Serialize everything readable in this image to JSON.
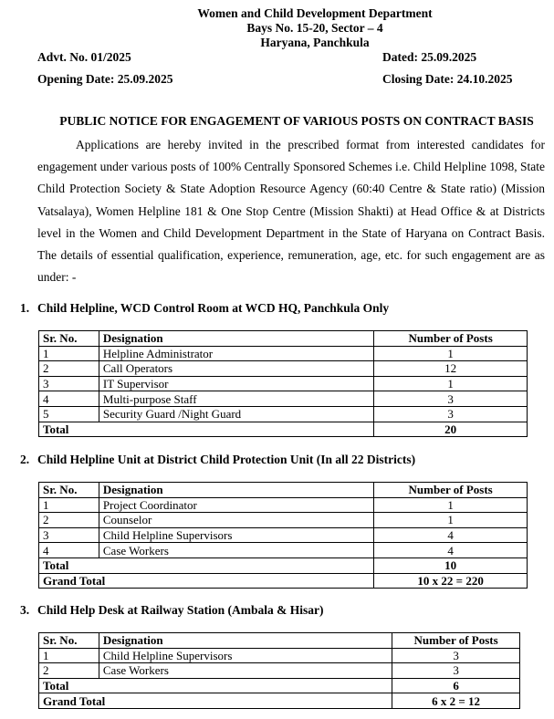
{
  "header": {
    "dept": "Women and Child Development Department",
    "address1": "Bays No. 15-20, Sector – 4",
    "address2": "Haryana, Panchkula"
  },
  "advt": "Advt. No. 01/2025",
  "dated": "Dated: 25.09.2025",
  "opening": "Opening Date: 25.09.2025",
  "closing": "Closing Date: 24.10.2025",
  "title": "PUBLIC NOTICE FOR ENGAGEMENT OF VARIOUS POSTS ON CONTRACT BASIS",
  "paragraph": "Applications are hereby invited in the prescribed format from interested candidates for engagement under various posts of 100% Centrally Sponsored Schemes i.e. Child Helpline 1098, State Child Protection Society & State Adoption Resource Agency (60:40 Centre & State ratio) (Mission Vatsalaya), Women Helpline 181 & One Stop Centre (Mission Shakti) at Head Office & at Districts level in the Women and Child Development Department in the State of Haryana on Contract Basis. The details of essential qualification, experience, remuneration, age, etc. for such engagement are as under: -",
  "columns": {
    "sr": "Sr. No.",
    "designation": "Designation",
    "posts": "Number of Posts"
  },
  "sections": [
    {
      "num": "1.",
      "heading": "Child Helpline, WCD Control Room at WCD HQ, Panchkula Only",
      "rows": [
        [
          "1",
          "Helpline Administrator",
          "1"
        ],
        [
          "2",
          "Call Operators",
          "12"
        ],
        [
          "3",
          "IT Supervisor",
          "1"
        ],
        [
          "4",
          "Multi-purpose Staff",
          "3"
        ],
        [
          "5",
          "Security Guard /Night Guard",
          "3"
        ]
      ],
      "total_label": "Total",
      "total": "20"
    },
    {
      "num": "2.",
      "heading": "Child Helpline Unit at District Child Protection Unit (In all 22 Districts)",
      "rows": [
        [
          "1",
          "Project  Coordinator",
          "1"
        ],
        [
          "2",
          "Counselor",
          "1"
        ],
        [
          "3",
          "Child Helpline Supervisors",
          "4"
        ],
        [
          "4",
          "Case Workers",
          "4"
        ]
      ],
      "total_label": "Total",
      "total": "10",
      "grand_label": "Grand Total",
      "grand": "10 x 22 = 220"
    },
    {
      "num": "3.",
      "heading": "Child Help Desk at Railway Station (Ambala & Hisar)",
      "rows": [
        [
          "1",
          "Child Helpline Supervisors",
          "3"
        ],
        [
          "2",
          "Case Workers",
          "3"
        ]
      ],
      "total_label": "Total",
      "total": "6",
      "grand_label": "Grand Total",
      "grand": "6 x 2 = 12"
    }
  ]
}
